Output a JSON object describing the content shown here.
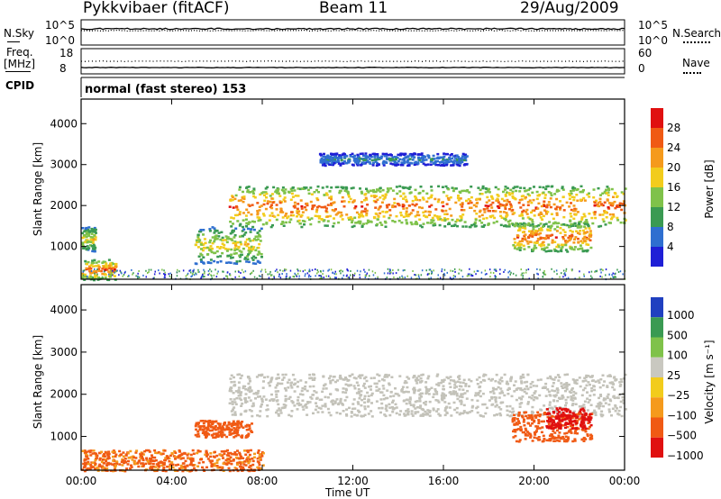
{
  "header": {
    "radar": "Pykkvibaer (fitACF)",
    "beam": "Beam 11",
    "date": "29/Aug/2009"
  },
  "top_panel": {
    "left_label": "N.Sky",
    "right_label": "N.Search",
    "left_ticks": [
      "10^5",
      "10^0"
    ],
    "right_ticks": [
      "10^5",
      "10^0"
    ]
  },
  "freq_panel": {
    "left_label_1": "Freq.",
    "left_label_2": "[MHz]",
    "right_label": "Nave",
    "left_ticks": [
      "18",
      "8"
    ],
    "right_ticks": [
      "60",
      "0"
    ]
  },
  "cpid": {
    "label": "CPID",
    "value": "normal (fast stereo) 153"
  },
  "colors": {
    "power": [
      "#1f1fd6",
      "#2f6fd0",
      "#3a9a52",
      "#7fc24a",
      "#f2cc1c",
      "#f59a1c",
      "#f05a14",
      "#e01010"
    ],
    "velocity": [
      "#e01010",
      "#f05a14",
      "#f59a1c",
      "#f2cc1c",
      "#c9c8c0",
      "#7fc24a",
      "#3a9a52",
      "#2040c0"
    ],
    "gray": "#c3c2b9"
  },
  "chart_data": [
    {
      "type": "heatmap",
      "name": "power",
      "ylabel": "Slant Range [km]",
      "xlabel": "",
      "x_ticks": [
        "00:00",
        "04:00",
        "08:00",
        "12:00",
        "16:00",
        "20:00",
        "00:00"
      ],
      "y_ticks": [
        1000,
        2000,
        3000,
        4000
      ],
      "xlim_hours": [
        0,
        24
      ],
      "ylim_km": [
        200,
        4600
      ],
      "colorbar": {
        "label": "Power [dB]",
        "ticks": [
          "28",
          "24",
          "20",
          "16",
          "12",
          "8",
          "4"
        ],
        "range": [
          0,
          32
        ]
      },
      "echo_bands": [
        {
          "t": [
            0.0,
            1.5
          ],
          "r": [
            200,
            700
          ],
          "level": "high"
        },
        {
          "t": [
            0.0,
            0.6
          ],
          "r": [
            900,
            1500
          ],
          "level": "mid"
        },
        {
          "t": [
            5.0,
            8.0
          ],
          "r": [
            600,
            1500
          ],
          "level": "mid"
        },
        {
          "t": [
            6.5,
            24.0
          ],
          "r": [
            1500,
            2500
          ],
          "level": "high"
        },
        {
          "t": [
            10.5,
            17.0
          ],
          "r": [
            3000,
            3300
          ],
          "level": "low"
        },
        {
          "t": [
            19.0,
            22.5
          ],
          "r": [
            900,
            1600
          ],
          "level": "high"
        }
      ]
    },
    {
      "type": "heatmap",
      "name": "velocity",
      "ylabel": "Slant Range [km]",
      "xlabel": "Time UT",
      "x_ticks": [
        "00:00",
        "04:00",
        "08:00",
        "12:00",
        "16:00",
        "20:00",
        "00:00"
      ],
      "y_ticks": [
        1000,
        2000,
        3000,
        4000
      ],
      "xlim_hours": [
        0,
        24
      ],
      "ylim_km": [
        200,
        4600
      ],
      "colorbar": {
        "label": "Velocity [m s⁻¹]",
        "ticks": [
          "1000",
          "500",
          "100",
          "25",
          "−25",
          "−100",
          "−500",
          "−1000"
        ],
        "range": [
          -1000,
          1000
        ]
      },
      "echo_bands": [
        {
          "t": [
            0.0,
            8.0
          ],
          "r": [
            200,
            700
          ],
          "velocity": -150
        },
        {
          "t": [
            5.0,
            7.5
          ],
          "r": [
            1000,
            1400
          ],
          "velocity": -300
        },
        {
          "t": [
            6.5,
            24.0
          ],
          "r": [
            1500,
            2500
          ],
          "velocity": 0
        },
        {
          "t": [
            19.0,
            22.5
          ],
          "r": [
            900,
            1600
          ],
          "velocity": -400
        },
        {
          "t": [
            20.5,
            22.5
          ],
          "r": [
            1200,
            1700
          ],
          "velocity": -600
        }
      ]
    }
  ]
}
